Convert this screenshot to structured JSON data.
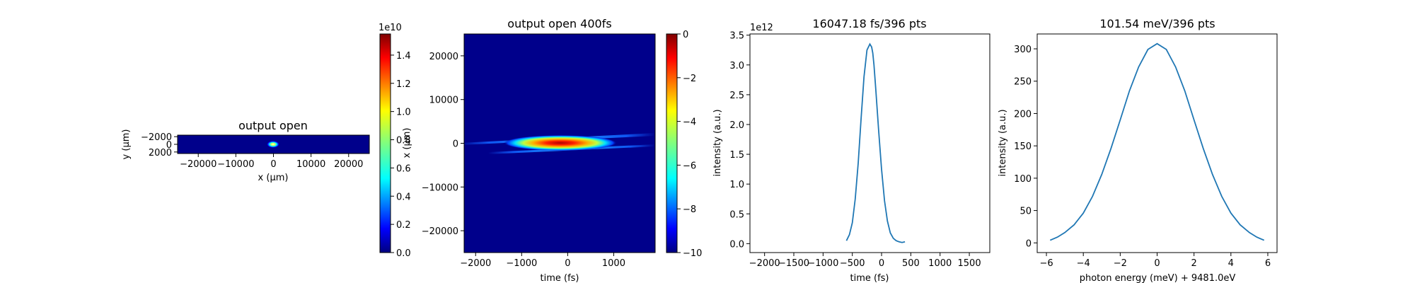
{
  "chart_data": [
    {
      "type": "heatmap",
      "title": "output open",
      "xlabel": "x (μm)",
      "ylabel": "y (μm)",
      "xlim": [
        -25500,
        25500
      ],
      "ylim": [
        2400,
        -2400
      ],
      "xticks": [
        -20000,
        -10000,
        0,
        10000,
        20000
      ],
      "xtick_labels": [
        "−20000",
        "−10000",
        "0",
        "10000",
        "20000"
      ],
      "yticks": [
        -2000,
        0,
        2000
      ],
      "ytick_labels": [
        "−2000",
        "0",
        "2000"
      ],
      "colormap": "jet",
      "colorbar": {
        "ticks": [
          0.0,
          0.2,
          0.4,
          0.6,
          0.8,
          1.0,
          1.2,
          1.4
        ],
        "tick_labels": [
          "0.0",
          "0.2",
          "0.4",
          "0.6",
          "0.8",
          "1.0",
          "1.2",
          "1.4"
        ],
        "min": 0.0,
        "max": 1.55,
        "offset_text": "1e10"
      },
      "spot": {
        "x_center": 0,
        "y_center": 0,
        "peak": 15000000000.0
      }
    },
    {
      "type": "heatmap",
      "title": "output open 400fs",
      "xlabel": "time (fs)",
      "ylabel": "x (μm)",
      "xlim": [
        -2250,
        1900
      ],
      "ylim": [
        -25000,
        25000
      ],
      "xticks": [
        -2000,
        -1000,
        0,
        1000
      ],
      "xtick_labels": [
        "−2000",
        "−1000",
        "0",
        "1000"
      ],
      "yticks": [
        -20000,
        -10000,
        0,
        10000,
        20000
      ],
      "ytick_labels": [
        "−20000",
        "−10000",
        "0",
        "10000",
        "20000"
      ],
      "colormap": "jet",
      "scale": "log",
      "colorbar": {
        "ticks": [
          0,
          -2,
          -4,
          -6,
          -8,
          -10
        ],
        "tick_labels": [
          "0",
          "−2",
          "−4",
          "−6",
          "−8",
          "−10"
        ],
        "min": -10,
        "max": 0
      }
    },
    {
      "type": "line",
      "title": "16047.18 fs/396 pts",
      "xlabel": "time (fs)",
      "ylabel": "intensity (a.u.)",
      "xlim": [
        -2250,
        1850
      ],
      "ylim": [
        -0.15,
        3.52
      ],
      "xticks": [
        -2000,
        -1500,
        -1000,
        -500,
        0,
        500,
        1000,
        1500
      ],
      "xtick_labels": [
        "−2000",
        "−1500",
        "−1000",
        "−500",
        "0",
        "500",
        "1000",
        "1500"
      ],
      "yticks": [
        0.0,
        0.5,
        1.0,
        1.5,
        2.0,
        2.5,
        3.0,
        3.5
      ],
      "ytick_labels": [
        "0.0",
        "0.5",
        "1.0",
        "1.5",
        "2.0",
        "2.5",
        "3.0",
        "3.5"
      ],
      "y_offset_text": "1e12",
      "color": "#1f77b4",
      "x": [
        -600,
        -550,
        -500,
        -450,
        -400,
        -350,
        -300,
        -250,
        -200,
        -170,
        -150,
        -130,
        -100,
        -50,
        0,
        50,
        100,
        150,
        200,
        250,
        300,
        350,
        400
      ],
      "y": [
        0.05,
        0.15,
        0.35,
        0.75,
        1.35,
        2.1,
        2.8,
        3.25,
        3.35,
        3.3,
        3.2,
        3.0,
        2.6,
        1.9,
        1.25,
        0.72,
        0.38,
        0.18,
        0.09,
        0.05,
        0.03,
        0.02,
        0.03
      ]
    },
    {
      "type": "line",
      "title": "101.54 meV/396 pts",
      "xlabel": "photon energy (meV) + 9481.0eV",
      "ylabel": "intensity (a.u.)",
      "xlim": [
        -6.5,
        6.5
      ],
      "ylim": [
        -15,
        323
      ],
      "xticks": [
        -6,
        -4,
        -2,
        0,
        2,
        4,
        6
      ],
      "xtick_labels": [
        "−6",
        "−4",
        "−2",
        "0",
        "2",
        "4",
        "6"
      ],
      "yticks": [
        0,
        50,
        100,
        150,
        200,
        250,
        300
      ],
      "ytick_labels": [
        "0",
        "50",
        "100",
        "150",
        "200",
        "250",
        "300"
      ],
      "color": "#1f77b4",
      "x": [
        -5.8,
        -5.4,
        -5.0,
        -4.5,
        -4.0,
        -3.5,
        -3.0,
        -2.5,
        -2.0,
        -1.5,
        -1.0,
        -0.5,
        0.0,
        0.5,
        1.0,
        1.5,
        2.0,
        2.5,
        3.0,
        3.5,
        4.0,
        4.5,
        5.0,
        5.4,
        5.8
      ],
      "y": [
        4,
        9,
        16,
        28,
        46,
        72,
        106,
        146,
        190,
        235,
        272,
        299,
        308,
        299,
        272,
        235,
        190,
        146,
        106,
        72,
        46,
        28,
        16,
        9,
        4
      ]
    }
  ]
}
